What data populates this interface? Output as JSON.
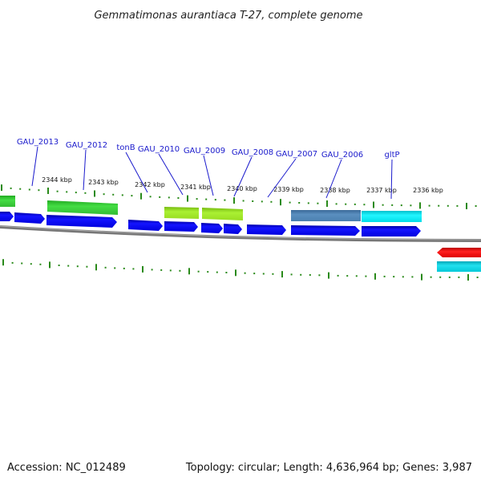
{
  "title": "Gemmatimonas aurantiaca T-27, complete genome",
  "accession": "Accession: NC_012489",
  "summary": "Topology: circular; Length: 4,636,964 bp; Genes: 3,987",
  "colors": {
    "cds": "#0000ee",
    "cds_dark": "#000088",
    "green": "#33cc33",
    "lime": "#99ee22",
    "steel": "#4a7fb0",
    "cyan": "#00e5ee",
    "red": "#ee0000",
    "teal": "#00c8d8",
    "tick": "#2a8a1a",
    "backbone": "#777777",
    "label": "#1a1acc"
  },
  "gene_labels": [
    "GAU_2013",
    "GAU_2012",
    "tonB",
    "GAU_2010",
    "GAU_2009",
    "GAU_2008",
    "GAU_2007",
    "GAU_2006",
    "gltP"
  ],
  "kbp_labels": [
    "2344 kbp",
    "2343 kbp",
    "2342 kbp",
    "2341 kbp",
    "2340 kbp",
    "2339 kbp",
    "2338 kbp",
    "2337 kbp",
    "2336 kbp"
  ]
}
